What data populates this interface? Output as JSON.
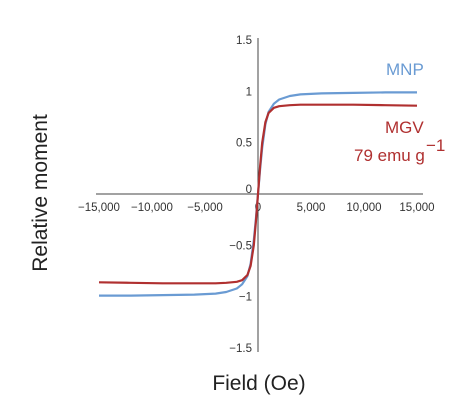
{
  "chart_data": {
    "type": "line",
    "title": "",
    "xlabel": "Field (Oe)",
    "ylabel": "Relative moment",
    "xlim": [
      -15000,
      15000
    ],
    "ylim": [
      -1.5,
      1.5
    ],
    "x_ticks": [
      "−15,000",
      "−10,000",
      "−5,000",
      "0",
      "5,000",
      "10,000",
      "15,000"
    ],
    "x_tick_values": [
      -15000,
      -10000,
      -5000,
      0,
      5000,
      10000,
      15000
    ],
    "y_ticks": [
      "1.5",
      "1",
      "0.5",
      "0",
      "−0.5",
      "−1",
      "−1.5"
    ],
    "y_tick_values": [
      1.5,
      1,
      0.5,
      0,
      -0.5,
      -1,
      -1.5
    ],
    "grid": false,
    "legend": "none",
    "series": [
      {
        "name": "MNP",
        "color": "#6a9bd3",
        "x": [
          -15000,
          -12000,
          -9000,
          -6000,
          -4000,
          -3000,
          -2000,
          -1500,
          -1000,
          -700,
          -400,
          -200,
          0,
          200,
          400,
          700,
          1000,
          1500,
          2000,
          3000,
          4000,
          6000,
          9000,
          12000,
          15000
        ],
        "y": [
          -0.99,
          -0.99,
          -0.985,
          -0.98,
          -0.97,
          -0.955,
          -0.92,
          -0.88,
          -0.8,
          -0.68,
          -0.45,
          -0.24,
          0.0,
          0.24,
          0.45,
          0.68,
          0.8,
          0.88,
          0.92,
          0.955,
          0.97,
          0.98,
          0.985,
          0.99,
          0.99
        ]
      },
      {
        "name": "MGV",
        "label_line2": "79 emu g",
        "label_superscript": "−1",
        "color": "#b03030",
        "x": [
          -15000,
          -12000,
          -9000,
          -6000,
          -4000,
          -3000,
          -2000,
          -1500,
          -1000,
          -700,
          -400,
          -200,
          0,
          200,
          400,
          700,
          1000,
          1500,
          2000,
          3000,
          4000,
          6000,
          9000,
          12000,
          15000
        ],
        "y": [
          -0.86,
          -0.865,
          -0.87,
          -0.87,
          -0.87,
          -0.865,
          -0.855,
          -0.84,
          -0.79,
          -0.7,
          -0.5,
          -0.27,
          0.0,
          0.27,
          0.5,
          0.7,
          0.79,
          0.84,
          0.855,
          0.865,
          0.87,
          0.87,
          0.87,
          0.865,
          0.86
        ]
      }
    ]
  }
}
